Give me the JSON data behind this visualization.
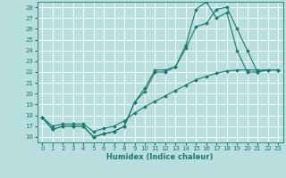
{
  "xlabel": "Humidex (Indice chaleur)",
  "bg_color": "#b8dede",
  "grid_color": "#ffffff",
  "line_color": "#1a7a6e",
  "xlim": [
    -0.5,
    23.5
  ],
  "ylim": [
    15.5,
    28.5
  ],
  "xticks": [
    0,
    1,
    2,
    3,
    4,
    5,
    6,
    7,
    8,
    9,
    10,
    11,
    12,
    13,
    14,
    15,
    16,
    17,
    18,
    19,
    20,
    21,
    22,
    23
  ],
  "yticks": [
    16,
    17,
    18,
    19,
    20,
    21,
    22,
    23,
    24,
    25,
    26,
    27,
    28
  ],
  "line1_x": [
    0,
    1,
    2,
    3,
    4,
    5,
    6,
    7,
    8,
    9,
    10,
    11,
    12,
    13,
    14,
    15,
    16,
    17,
    18,
    19,
    20,
    21,
    22,
    23
  ],
  "line1_y": [
    17.8,
    16.7,
    17.0,
    17.0,
    17.0,
    16.0,
    16.3,
    16.5,
    17.0,
    19.2,
    20.5,
    22.2,
    22.2,
    22.5,
    24.5,
    27.8,
    28.5,
    27.0,
    27.5,
    24.0,
    22.0,
    22.0,
    22.2,
    22.2
  ],
  "line2_x": [
    0,
    1,
    2,
    3,
    4,
    5,
    6,
    7,
    8,
    9,
    10,
    11,
    12,
    13,
    14,
    15,
    16,
    17,
    18,
    19,
    20,
    21,
    22,
    23
  ],
  "line2_y": [
    17.8,
    16.7,
    17.0,
    17.0,
    17.0,
    16.0,
    16.3,
    16.5,
    17.0,
    19.2,
    20.2,
    22.0,
    22.0,
    22.5,
    24.2,
    26.2,
    26.5,
    27.8,
    28.0,
    26.0,
    24.0,
    22.0,
    22.2,
    22.2
  ],
  "line3_x": [
    0,
    1,
    2,
    3,
    4,
    5,
    6,
    7,
    8,
    9,
    10,
    11,
    12,
    13,
    14,
    15,
    16,
    17,
    18,
    19,
    20,
    21,
    22,
    23
  ],
  "line3_y": [
    17.8,
    17.0,
    17.2,
    17.2,
    17.2,
    16.5,
    16.8,
    17.0,
    17.5,
    18.2,
    18.8,
    19.3,
    19.8,
    20.3,
    20.8,
    21.3,
    21.6,
    21.9,
    22.1,
    22.2,
    22.2,
    22.2,
    22.2,
    22.2
  ]
}
